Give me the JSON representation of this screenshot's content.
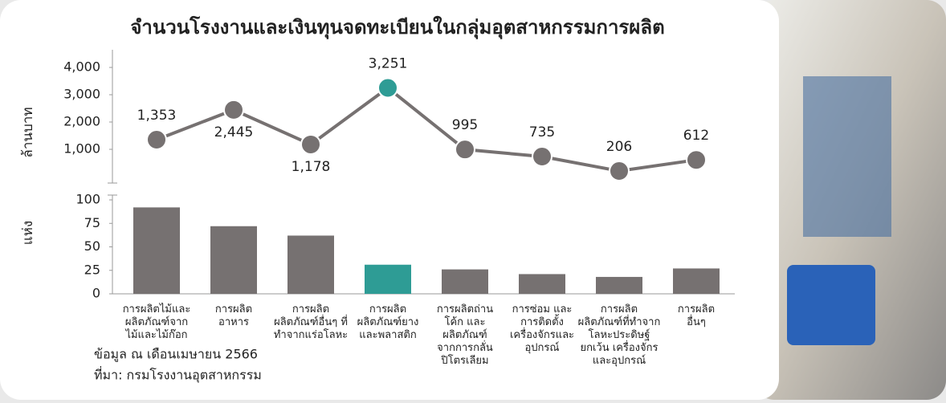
{
  "title": "จำนวนโรงงานและเงินทุนจดทะเบียนในกลุ่มอุตสาหกรรมการผลิต",
  "chart_data": [
    {
      "type": "line",
      "ylabel": "ล้านบาท",
      "values": [
        1353,
        2445,
        1178,
        3251,
        995,
        735,
        206,
        612
      ],
      "value_labels": [
        "1,353",
        "2,445",
        "1,178",
        "3,251",
        "995",
        "735",
        "206",
        "612"
      ],
      "color": "#767171",
      "colors": [
        "#767171",
        "#767171",
        "#767171",
        "#2e9c95",
        "#767171",
        "#767171",
        "#767171",
        "#767171"
      ],
      "ylim": [
        0,
        4500
      ],
      "yticks": [
        {
          "value": 1000,
          "label": "1,000"
        },
        {
          "value": 2000,
          "label": "2,000"
        },
        {
          "value": 3000,
          "label": "3,000"
        },
        {
          "value": 4000,
          "label": "4,000"
        }
      ]
    },
    {
      "type": "bar",
      "ylabel": "แห่ง",
      "categories": [
        [
          "การผลิตไม้และ",
          "ผลิตภัณฑ์จาก",
          "ไม้และไม้ก๊อก"
        ],
        [
          "การผลิต",
          "อาหาร"
        ],
        [
          "การผลิต",
          "ผลิตภัณฑ์อื่นๆ ที่",
          "ทำจากแร่อโลหะ"
        ],
        [
          "การผลิต",
          "ผลิตภัณฑ์ยาง",
          "และพลาสติก"
        ],
        [
          "การผลิตถ่าน",
          "โค้ก และ",
          "ผลิตภัณฑ์",
          "จากการกลั่น",
          "ปิโตรเลียม"
        ],
        [
          "การซ่อม และ",
          "การติดตั้ง",
          "เครื่องจักรและ",
          "อุปกรณ์"
        ],
        [
          "การผลิต",
          "ผลิตภัณฑ์ที่ทำจาก",
          "โลหะประดิษฐ์",
          "ยกเว้น เครื่องจักร",
          "และอุปกรณ์"
        ],
        [
          "การผลิต",
          "อื่นๆ"
        ]
      ],
      "values": [
        92,
        72,
        62,
        31,
        26,
        21,
        18,
        27
      ],
      "colors": [
        "#767171",
        "#767171",
        "#767171",
        "#2e9c95",
        "#767171",
        "#767171",
        "#767171",
        "#767171"
      ],
      "ylim": [
        0,
        100
      ],
      "yticks": [
        0,
        25,
        50,
        75,
        100
      ]
    }
  ],
  "notes": [
    "ข้อมูล ณ เดือนเมษายน 2566",
    "ที่มา: กรมโรงงานอุตสาหกรรม"
  ]
}
